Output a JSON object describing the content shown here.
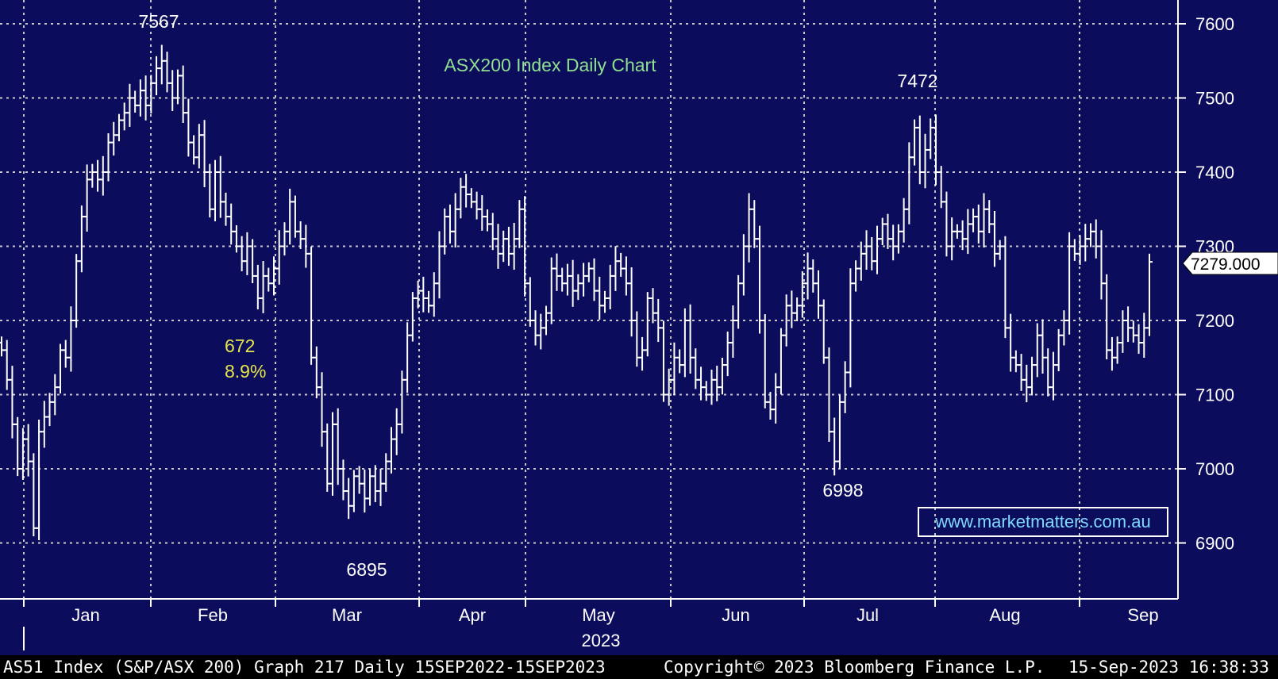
{
  "chart_data": {
    "type": "ohlc",
    "title": "ASX200 Index Daily Chart",
    "ylim": [
      6840,
      7640
    ],
    "yticks": [
      6900,
      7000,
      7100,
      7200,
      7300,
      7400,
      7500,
      7600
    ],
    "grid": true,
    "axis_side": "right",
    "months": [
      "Jan",
      "Feb",
      "Mar",
      "Apr",
      "May",
      "Jun",
      "Jul",
      "Aug",
      "Sep"
    ],
    "year_label": "2023",
    "last_price": "7279.000",
    "watermark": "www.marketmatters.com.au",
    "annotations": [
      {
        "text": "7567",
        "value": 7567,
        "color": "#ffffff"
      },
      {
        "text": "7472",
        "value": 7472,
        "color": "#ffffff"
      },
      {
        "text": "6998",
        "value": 6998,
        "color": "#ffffff"
      },
      {
        "text": "6895",
        "value": 6895,
        "color": "#ffffff"
      },
      {
        "text": "672",
        "color": "#e6e64c"
      },
      {
        "text": "8.9%",
        "color": "#e6e64c"
      }
    ],
    "closes": [
      7160,
      7120,
      7060,
      7000,
      7040,
      7010,
      6920,
      7050,
      7070,
      7090,
      7110,
      7160,
      7150,
      7200,
      7280,
      7340,
      7390,
      7400,
      7390,
      7400,
      7440,
      7450,
      7470,
      7480,
      7500,
      7490,
      7510,
      7490,
      7520,
      7540,
      7550,
      7520,
      7500,
      7530,
      7480,
      7440,
      7420,
      7450,
      7400,
      7350,
      7400,
      7360,
      7340,
      7320,
      7300,
      7280,
      7300,
      7260,
      7230,
      7260,
      7250,
      7270,
      7300,
      7320,
      7360,
      7320,
      7310,
      7290,
      7150,
      7110,
      7050,
      6980,
      7060,
      7000,
      6970,
      6950,
      6990,
      6980,
      6960,
      6990,
      6970,
      6980,
      7010,
      7040,
      7060,
      7120,
      7180,
      7230,
      7240,
      7230,
      7220,
      7250,
      7300,
      7340,
      7320,
      7350,
      7380,
      7370,
      7360,
      7350,
      7340,
      7330,
      7310,
      7290,
      7310,
      7290,
      7310,
      7350,
      7250,
      7200,
      7180,
      7190,
      7210,
      7270,
      7260,
      7250,
      7260,
      7240,
      7250,
      7260,
      7270,
      7240,
      7220,
      7230,
      7260,
      7280,
      7270,
      7250,
      7200,
      7150,
      7160,
      7230,
      7210,
      7190,
      7100,
      7120,
      7150,
      7140,
      7200,
      7150,
      7120,
      7110,
      7100,
      7120,
      7110,
      7140,
      7170,
      7200,
      7250,
      7300,
      7350,
      7310,
      7200,
      7090,
      7080,
      7110,
      7180,
      7220,
      7210,
      7220,
      7250,
      7270,
      7250,
      7220,
      7150,
      7050,
      7010,
      7090,
      7130,
      7250,
      7270,
      7290,
      7300,
      7280,
      7310,
      7330,
      7310,
      7300,
      7320,
      7350,
      7420,
      7460,
      7400,
      7430,
      7460,
      7400,
      7360,
      7300,
      7320,
      7320,
      7310,
      7330,
      7340,
      7320,
      7350,
      7330,
      7290,
      7300,
      7190,
      7150,
      7140,
      7120,
      7110,
      7140,
      7180,
      7150,
      7110,
      7140,
      7180,
      7200,
      7300,
      7290,
      7300,
      7310,
      7320,
      7300,
      7250,
      7160,
      7150,
      7170,
      7200,
      7190,
      7180,
      7170,
      7190,
      7279
    ]
  },
  "footer": {
    "left": "AS51 Index (S&P/ASX 200) Graph 217  Daily 15SEP2022-15SEP2023",
    "copyright": "Copyright© 2023 Bloomberg Finance L.P.",
    "timestamp": "15-Sep-2023 16:38:33"
  }
}
